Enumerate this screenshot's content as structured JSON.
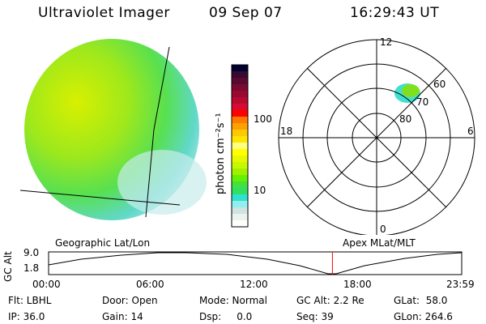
{
  "header": {
    "instrument": "Ultraviolet Imager",
    "date": "09 Sep 07",
    "time": "16:29:43 UT"
  },
  "colorbar": {
    "label": "photon cm⁻²s⁻¹",
    "ticks": [
      "100",
      "10"
    ],
    "colors": [
      "#000030",
      "#380a30",
      "#580a30",
      "#7a0a30",
      "#990a30",
      "#b80a30",
      "#d80a30",
      "#ff0000",
      "#ff7800",
      "#ffa000",
      "#ffc800",
      "#ffe400",
      "#ffff80",
      "#ffff00",
      "#e8f800",
      "#c8f800",
      "#a0f000",
      "#64f000",
      "#44e040",
      "#30e060",
      "#30e0d0",
      "#90f0f0",
      "#d0e2e2",
      "#e8f4ee",
      "#ffffff"
    ]
  },
  "polar": {
    "mlt_labels": {
      "top": "12",
      "left": "18",
      "right": "6",
      "bottom": "0"
    },
    "lat_labels": [
      "60",
      "70",
      "80"
    ]
  },
  "timeline": {
    "left_title": "Geographic Lat/Lon",
    "right_title": "Apex MLat/MLT",
    "ylabel": "GC Alt",
    "y_ticks": [
      "9.0",
      "1.8"
    ],
    "x_ticks": [
      "00:00",
      "06:00",
      "12:00",
      "18:00",
      "23:59"
    ],
    "current_marker_fraction": 0.687,
    "marker_color": "#ff0000"
  },
  "info": [
    [
      "Flt: LBHL",
      "Door: Open",
      "Mode: Normal",
      "GC Alt: 2.2 Re",
      "GLat:  58.0"
    ],
    [
      "IP: 36.0",
      "Gain: 14",
      "Dsp:     0.0",
      "Seq: 39",
      "GLon: 264.6"
    ]
  ]
}
